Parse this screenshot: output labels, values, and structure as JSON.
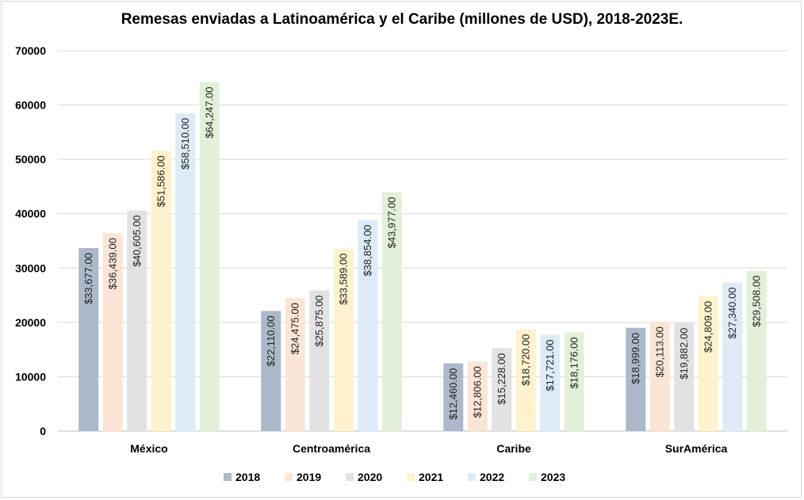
{
  "chart_data": {
    "type": "bar",
    "title": "Remesas enviadas a Latinoamérica y el Caribe (millones de USD), 2018-2023E.",
    "xlabel": "",
    "ylabel": "",
    "ylim": [
      0,
      70000
    ],
    "yticks": [
      0,
      10000,
      20000,
      30000,
      40000,
      50000,
      60000,
      70000
    ],
    "grid": true,
    "legend_position": "bottom",
    "categories": [
      "México",
      "Centroamérica",
      "Caribe",
      "SurAmérica"
    ],
    "series": [
      {
        "name": "2018",
        "color": "#adb9ca",
        "values": [
          33677,
          22110,
          12460,
          18999
        ],
        "labels": [
          "$33,677.00",
          "$22,110.00",
          "$12,460.00",
          "$18,999.00"
        ]
      },
      {
        "name": "2019",
        "color": "#fbe5d6",
        "values": [
          36439,
          24475,
          12806,
          20113
        ],
        "labels": [
          "$36,439.00",
          "$24,475.00",
          "$12,806.00",
          "$20,113.00"
        ]
      },
      {
        "name": "2020",
        "color": "#e2e2e2",
        "values": [
          40605,
          25875,
          15228,
          19882
        ],
        "labels": [
          "$40,605.00",
          "$25,875.00",
          "$15,228.00",
          "$19,882.00"
        ]
      },
      {
        "name": "2021",
        "color": "#fff2cc",
        "values": [
          51586,
          33589,
          18720,
          24809
        ],
        "labels": [
          "$51,586.00",
          "$33,589.00",
          "$18,720.00",
          "$24,809.00"
        ]
      },
      {
        "name": "2022",
        "color": "#deebf7",
        "values": [
          58510,
          38854,
          17721,
          27340
        ],
        "labels": [
          "$58,510.00",
          "$38,854.00",
          "$17,721.00",
          "$27,340.00"
        ]
      },
      {
        "name": "2023",
        "color": "#e2f0d9",
        "values": [
          64247,
          43977,
          18176,
          29508
        ],
        "labels": [
          "$64,247.00",
          "$43,977.00",
          "$18,176.00",
          "$29,508.00"
        ]
      }
    ]
  }
}
